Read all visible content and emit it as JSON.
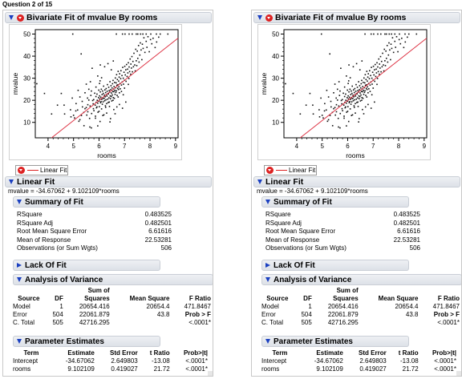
{
  "question_header": "Question 2 of 15",
  "bivariate_title": "Bivariate Fit of mvalue By rooms",
  "legend_label": "Linear Fit",
  "linear_fit_title": "Linear Fit",
  "equation": "mvalue = -34.67062 + 9.102109*rooms",
  "summary_title": "Summary of Fit",
  "summary_rows": [
    {
      "label": "RSquare",
      "value": "0.483525"
    },
    {
      "label": "RSquare Adj",
      "value": "0.482501"
    },
    {
      "label": "Root Mean Square Error",
      "value": "6.61616"
    },
    {
      "label": "Mean of Response",
      "value": "22.53281"
    },
    {
      "label": "Observations (or Sum Wgts)",
      "value": "506"
    }
  ],
  "lack_of_fit_title": "Lack Of Fit",
  "anova_title": "Analysis of Variance",
  "anova": {
    "sum_of": "Sum of",
    "headers": [
      "Source",
      "DF",
      "Squares",
      "Mean Square",
      "F Ratio"
    ],
    "rows": [
      [
        "Model",
        "1",
        "20654.416",
        "20654.4",
        "471.8467"
      ],
      [
        "Error",
        "504",
        "22061.879",
        "43.8",
        "Prob > F"
      ],
      [
        "C. Total",
        "505",
        "42716.295",
        "",
        "<.0001*"
      ]
    ]
  },
  "param_title": "Parameter Estimates",
  "params": {
    "headers": [
      "Term",
      "Estimate",
      "Std Error",
      "t Ratio",
      "Prob>|t|"
    ],
    "rows": [
      [
        "Intercept",
        "-34.67062",
        "2.649803",
        "-13.08",
        "<.0001*"
      ],
      [
        "rooms",
        "9.102109",
        "0.419027",
        "21.72",
        "<.0001*"
      ]
    ]
  },
  "chart_data": {
    "type": "scatter",
    "xlabel": "rooms",
    "ylabel": "mvalue",
    "xlim": [
      3.5,
      9.1
    ],
    "ylim": [
      3,
      52
    ],
    "xticks": [
      "4",
      "5",
      "6",
      "7",
      "8",
      "9"
    ],
    "yticks": [
      "10",
      "20",
      "30",
      "40",
      "50"
    ],
    "fit_line": {
      "intercept": -34.67062,
      "slope": 9.102109
    },
    "point_color": "#111111",
    "line_color": "#dd3344",
    "points": [
      [
        3.56,
        27.5
      ],
      [
        3.86,
        23.1
      ],
      [
        4.14,
        13.8
      ],
      [
        4.37,
        17.8
      ],
      [
        4.52,
        23.1
      ],
      [
        4.63,
        17.8
      ],
      [
        4.65,
        13.8
      ],
      [
        4.88,
        15.7
      ],
      [
        4.9,
        12.5
      ],
      [
        4.97,
        50
      ],
      [
        5.0,
        13.2
      ],
      [
        5.04,
        12.0
      ],
      [
        5.09,
        15.2
      ],
      [
        5.16,
        15.6
      ],
      [
        5.21,
        10.5
      ],
      [
        5.25,
        11.2
      ],
      [
        5.31,
        13.1
      ],
      [
        5.34,
        19.5
      ],
      [
        5.4,
        14.5
      ],
      [
        5.41,
        8.5
      ],
      [
        5.45,
        16.2
      ],
      [
        5.5,
        16.7
      ],
      [
        5.52,
        13.3
      ],
      [
        5.56,
        18.0
      ],
      [
        5.6,
        20.1
      ],
      [
        5.63,
        11.8
      ],
      [
        5.65,
        17.4
      ],
      [
        5.68,
        22.2
      ],
      [
        5.7,
        7.5
      ],
      [
        5.71,
        14.0
      ],
      [
        5.75,
        19.9
      ],
      [
        5.77,
        18.4
      ],
      [
        5.79,
        20.3
      ],
      [
        5.8,
        15.3
      ],
      [
        5.83,
        23.2
      ],
      [
        5.85,
        17.8
      ],
      [
        5.86,
        11.9
      ],
      [
        5.88,
        21.7
      ],
      [
        5.89,
        19.1
      ],
      [
        5.9,
        16.6
      ],
      [
        5.92,
        22.8
      ],
      [
        5.93,
        20.0
      ],
      [
        5.95,
        18.7
      ],
      [
        5.96,
        14.6
      ],
      [
        5.98,
        21.2
      ],
      [
        5.99,
        24.6
      ],
      [
        6.0,
        19.6
      ],
      [
        6.01,
        17.1
      ],
      [
        6.02,
        22.0
      ],
      [
        6.03,
        20.6
      ],
      [
        6.04,
        10.4
      ],
      [
        6.05,
        23.8
      ],
      [
        6.06,
        18.9
      ],
      [
        6.07,
        21.4
      ],
      [
        6.08,
        19.4
      ],
      [
        6.09,
        25.0
      ],
      [
        6.1,
        16.1
      ],
      [
        6.11,
        20.4
      ],
      [
        6.12,
        22.6
      ],
      [
        6.13,
        18.2
      ],
      [
        6.14,
        24.2
      ],
      [
        6.15,
        21.0
      ],
      [
        6.16,
        19.3
      ],
      [
        6.17,
        23.1
      ],
      [
        6.18,
        26.4
      ],
      [
        6.19,
        13.4
      ],
      [
        6.2,
        20.8
      ],
      [
        6.21,
        22.3
      ],
      [
        6.22,
        19.8
      ],
      [
        6.23,
        24.7
      ],
      [
        6.24,
        21.6
      ],
      [
        6.25,
        17.5
      ],
      [
        6.26,
        23.5
      ],
      [
        6.27,
        20.2
      ],
      [
        6.28,
        25.3
      ],
      [
        6.29,
        22.5
      ],
      [
        6.3,
        18.5
      ],
      [
        6.31,
        21.9
      ],
      [
        6.32,
        24.1
      ],
      [
        6.33,
        27.1
      ],
      [
        6.34,
        20.5
      ],
      [
        6.35,
        23.0
      ],
      [
        6.36,
        19.0
      ],
      [
        6.37,
        22.9
      ],
      [
        6.38,
        25.9
      ],
      [
        6.39,
        21.1
      ],
      [
        6.4,
        24.4
      ],
      [
        6.41,
        17.2
      ],
      [
        6.42,
        23.7
      ],
      [
        6.43,
        28.4
      ],
      [
        6.44,
        22.0
      ],
      [
        6.45,
        20.7
      ],
      [
        6.46,
        24.8
      ],
      [
        6.47,
        26.6
      ],
      [
        6.48,
        21.7
      ],
      [
        6.49,
        23.3
      ],
      [
        6.5,
        19.7
      ],
      [
        6.51,
        25.6
      ],
      [
        6.52,
        22.4
      ],
      [
        6.53,
        27.5
      ],
      [
        6.54,
        24.0
      ],
      [
        6.55,
        29.0
      ],
      [
        6.56,
        21.2
      ],
      [
        6.57,
        25.1
      ],
      [
        6.58,
        23.9
      ],
      [
        6.59,
        26.2
      ],
      [
        6.6,
        20.9
      ],
      [
        6.61,
        28.1
      ],
      [
        6.62,
        24.5
      ],
      [
        6.63,
        22.7
      ],
      [
        6.64,
        30.1
      ],
      [
        6.65,
        25.7
      ],
      [
        6.66,
        23.6
      ],
      [
        6.67,
        27.9
      ],
      [
        6.68,
        24.3
      ],
      [
        6.69,
        31.6
      ],
      [
        6.7,
        26.8
      ],
      [
        6.71,
        22.2
      ],
      [
        6.72,
        29.4
      ],
      [
        6.73,
        25.4
      ],
      [
        6.74,
        27.0
      ],
      [
        6.75,
        33.1
      ],
      [
        6.76,
        24.9
      ],
      [
        6.77,
        28.7
      ],
      [
        6.78,
        26.1
      ],
      [
        6.79,
        30.5
      ],
      [
        6.8,
        23.4
      ],
      [
        6.81,
        32.0
      ],
      [
        6.82,
        27.6
      ],
      [
        6.83,
        25.2
      ],
      [
        6.85,
        29.8
      ],
      [
        6.86,
        33.4
      ],
      [
        6.88,
        26.9
      ],
      [
        6.9,
        31.2
      ],
      [
        6.91,
        28.3
      ],
      [
        6.93,
        34.9
      ],
      [
        6.95,
        30.0
      ],
      [
        6.96,
        27.3
      ],
      [
        6.98,
        32.7
      ],
      [
        7.0,
        29.1
      ],
      [
        7.01,
        35.4
      ],
      [
        7.03,
        31.5
      ],
      [
        7.05,
        33.8
      ],
      [
        7.06,
        28.6
      ],
      [
        7.08,
        36.2
      ],
      [
        7.1,
        30.8
      ],
      [
        7.12,
        34.1
      ],
      [
        7.13,
        32.4
      ],
      [
        7.15,
        37.0
      ],
      [
        7.17,
        29.9
      ],
      [
        7.18,
        35.1
      ],
      [
        7.2,
        33.0
      ],
      [
        7.22,
        38.7
      ],
      [
        7.24,
        31.8
      ],
      [
        7.25,
        36.4
      ],
      [
        7.27,
        34.6
      ],
      [
        7.29,
        39.8
      ],
      [
        7.31,
        32.9
      ],
      [
        7.33,
        37.6
      ],
      [
        7.35,
        35.2
      ],
      [
        7.37,
        41.3
      ],
      [
        7.4,
        36.0
      ],
      [
        7.42,
        33.3
      ],
      [
        7.44,
        43.1
      ],
      [
        7.46,
        37.9
      ],
      [
        7.48,
        35.7
      ],
      [
        7.5,
        42.3
      ],
      [
        7.52,
        39.0
      ],
      [
        7.55,
        44.8
      ],
      [
        7.57,
        37.3
      ],
      [
        7.6,
        40.5
      ],
      [
        7.62,
        46.0
      ],
      [
        7.65,
        42.8
      ],
      [
        7.68,
        38.4
      ],
      [
        7.7,
        45.4
      ],
      [
        7.73,
        43.5
      ],
      [
        7.76,
        48.3
      ],
      [
        7.8,
        41.7
      ],
      [
        7.85,
        46.7
      ],
      [
        7.88,
        44.0
      ],
      [
        7.92,
        48.8
      ],
      [
        7.97,
        42.0
      ],
      [
        8.02,
        47.5
      ],
      [
        8.07,
        45.6
      ],
      [
        8.12,
        48.1
      ],
      [
        8.2,
        43.9
      ],
      [
        8.26,
        46.4
      ],
      [
        8.34,
        48.6
      ],
      [
        6.68,
        50
      ],
      [
        6.92,
        50
      ],
      [
        7.02,
        50
      ],
      [
        7.18,
        50
      ],
      [
        7.3,
        50
      ],
      [
        7.46,
        50
      ],
      [
        7.52,
        50
      ],
      [
        7.63,
        50
      ],
      [
        7.72,
        50
      ],
      [
        7.85,
        50
      ],
      [
        8.03,
        50
      ],
      [
        8.25,
        50
      ],
      [
        8.4,
        50
      ],
      [
        8.7,
        50
      ],
      [
        5.3,
        41.0
      ],
      [
        5.73,
        34.5
      ],
      [
        5.95,
        31.0
      ],
      [
        6.22,
        35.2
      ],
      [
        6.48,
        33.8
      ],
      [
        6.1,
        30.2
      ],
      [
        5.66,
        28.4
      ],
      [
        6.04,
        28.8
      ],
      [
        5.5,
        27.3
      ],
      [
        6.35,
        36.6
      ],
      [
        6.56,
        37.8
      ],
      [
        6.05,
        36.0
      ],
      [
        5.95,
        8.4
      ],
      [
        5.64,
        7.9
      ],
      [
        6.43,
        10.2
      ],
      [
        6.15,
        13.1
      ],
      [
        6.3,
        14.2
      ],
      [
        6.45,
        11.7
      ],
      [
        6.63,
        13.9
      ],
      [
        6.58,
        15.8
      ],
      [
        6.7,
        17.0
      ],
      [
        6.8,
        18.1
      ],
      [
        6.92,
        16.4
      ],
      [
        7.05,
        19.2
      ],
      [
        5.86,
        12.8
      ],
      [
        6.0,
        15.0
      ],
      [
        5.78,
        16.2
      ],
      [
        5.56,
        14.8
      ],
      [
        5.35,
        17.0
      ],
      [
        5.1,
        18.5
      ],
      [
        5.25,
        21.5
      ],
      [
        5.45,
        23.4
      ],
      [
        5.6,
        25.0
      ],
      [
        5.88,
        26.0
      ],
      [
        5.7,
        24.2
      ],
      [
        6.02,
        27.6
      ],
      [
        4.95,
        21.0
      ],
      [
        5.18,
        24.5
      ],
      [
        5.55,
        21.0
      ],
      [
        5.92,
        17.0
      ],
      [
        6.26,
        16.8
      ],
      [
        6.4,
        19.2
      ],
      [
        6.55,
        20.0
      ],
      [
        6.75,
        21.5
      ],
      [
        6.88,
        24.0
      ],
      [
        7.0,
        25.5
      ],
      [
        7.15,
        27.2
      ],
      [
        6.95,
        22.5
      ]
    ]
  }
}
